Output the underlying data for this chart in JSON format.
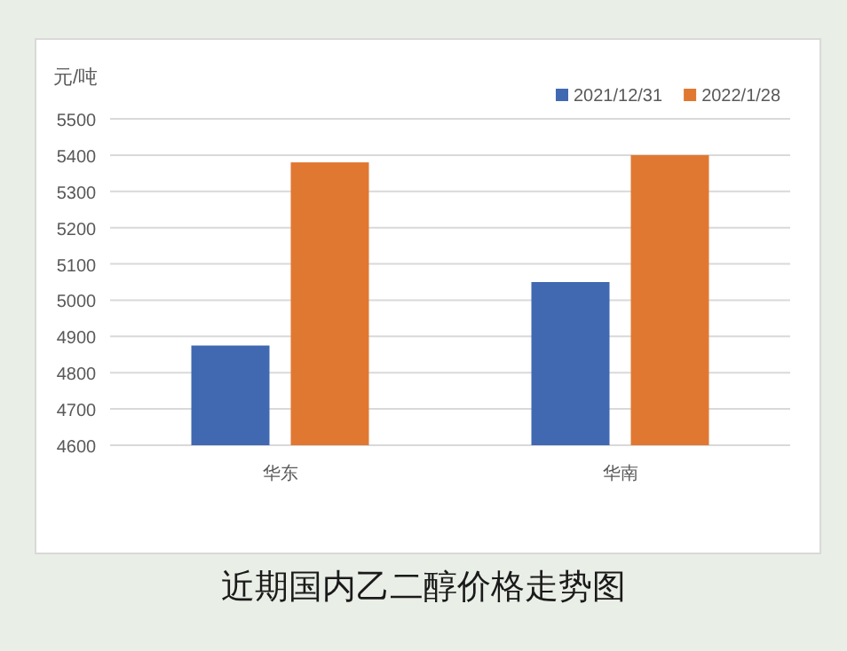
{
  "chart_data": {
    "type": "bar",
    "title": "近期国内乙二醇价格走势图",
    "ylabel": "元/吨",
    "categories": [
      "华东",
      "华南"
    ],
    "series": [
      {
        "name": "2021/12/31",
        "color": "#4169b2",
        "values": [
          4875,
          5050
        ]
      },
      {
        "name": "2022/1/28",
        "color": "#e07832",
        "values": [
          5380,
          5400
        ]
      }
    ],
    "ylim": [
      4600,
      5500
    ],
    "yticks": [
      4600,
      4700,
      4800,
      4900,
      5000,
      5100,
      5200,
      5300,
      5400,
      5500
    ],
    "grid": "y",
    "legend": "top right"
  }
}
